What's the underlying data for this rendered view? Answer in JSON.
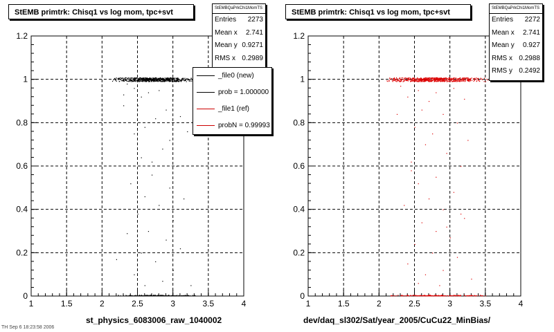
{
  "plots": [
    {
      "title": "StEMB primtrk: Chisq1 vs log mom, tpc+svt",
      "stats": {
        "name": "StEMBQaPrkChi1MomTS",
        "rows": [
          {
            "label": "Entries",
            "value": "2273"
          },
          {
            "label": "Mean x",
            "value": "2.741"
          },
          {
            "label": "Mean y",
            "value": "0.9271"
          },
          {
            "label": "RMS x",
            "value": "0.2989"
          }
        ]
      },
      "legend": [
        {
          "label": "_file0 (new)",
          "color": "#000000"
        },
        {
          "label": "prob = 1.000000",
          "color": "#000000"
        },
        {
          "label": "_file1 (ref)",
          "color": "#cc0000"
        },
        {
          "label": "probN = 0.99993",
          "color": "#cc0000"
        }
      ],
      "xlabel": "st_physics_6083006_raw_1040002",
      "marker_color": "#000000"
    },
    {
      "title": "StEMB primtrk: Chisq1 vs log mom, tpc+svt",
      "stats": {
        "name": "StEMBQaPrkChi1MomTS",
        "rows": [
          {
            "label": "Entries",
            "value": "2272"
          },
          {
            "label": "Mean x",
            "value": "2.741"
          },
          {
            "label": "Mean y",
            "value": "0.927"
          },
          {
            "label": "RMS x",
            "value": "0.2988"
          },
          {
            "label": "RMS y",
            "value": "0.2492"
          }
        ]
      },
      "legend": [],
      "xlabel": "dev/daq_sl302/Sat/year_2005/CuCu22_MinBias/",
      "marker_color": "#dd0000"
    }
  ],
  "footer": "TH Sep 6 18:23:58 2006",
  "chart_data": [
    {
      "type": "scatter",
      "title": "StEMB primtrk: Chisq1 vs log mom, tpc+svt",
      "xlabel": "st_physics_6083006_raw_1040002",
      "ylabel": "",
      "xlim": [
        1,
        4
      ],
      "ylim": [
        0,
        1.2
      ],
      "xticks": [
        "1",
        "1.5",
        "2",
        "2.5",
        "3",
        "3.5",
        "4"
      ],
      "yticks": [
        "0",
        "0.2",
        "0.4",
        "0.6",
        "0.8",
        "1",
        "1.2"
      ],
      "grid": true,
      "color": "#000000",
      "dense_bands": [
        {
          "y": 1.0,
          "x_range": [
            2.1,
            3.35
          ],
          "peak_x": 2.7
        },
        {
          "y": 0.0,
          "x_range": [
            2.2,
            3.35
          ],
          "peak_x": 2.75
        }
      ],
      "points": [
        [
          2.35,
          0.98
        ],
        [
          2.45,
          0.96
        ],
        [
          2.3,
          0.93
        ],
        [
          2.55,
          0.92
        ],
        [
          2.65,
          0.94
        ],
        [
          2.8,
          0.95
        ],
        [
          3.0,
          0.93
        ],
        [
          2.5,
          0.88
        ],
        [
          2.9,
          0.86
        ],
        [
          2.3,
          0.88
        ],
        [
          2.75,
          0.82
        ],
        [
          3.1,
          0.83
        ],
        [
          2.6,
          0.78
        ],
        [
          2.45,
          0.75
        ],
        [
          2.95,
          0.72
        ],
        [
          3.2,
          0.76
        ],
        [
          2.85,
          0.68
        ],
        [
          2.55,
          0.64
        ],
        [
          3.05,
          0.6
        ],
        [
          2.7,
          0.56
        ],
        [
          2.4,
          0.52
        ],
        [
          2.95,
          0.5
        ],
        [
          2.6,
          0.46
        ],
        [
          3.15,
          0.45
        ],
        [
          2.8,
          0.42
        ],
        [
          2.5,
          0.38
        ],
        [
          3.0,
          0.35
        ],
        [
          2.65,
          0.3
        ],
        [
          2.35,
          0.29
        ],
        [
          2.9,
          0.26
        ],
        [
          3.1,
          0.22
        ],
        [
          2.55,
          0.2
        ],
        [
          2.75,
          0.16
        ],
        [
          2.2,
          0.17
        ],
        [
          3.0,
          0.12
        ],
        [
          2.45,
          0.1
        ],
        [
          2.85,
          0.07
        ],
        [
          2.6,
          0.05
        ],
        [
          3.25,
          0.05
        ],
        [
          2.7,
          0.62
        ]
      ]
    },
    {
      "type": "scatter",
      "title": "StEMB primtrk: Chisq1 vs log mom, tpc+svt",
      "xlabel": "dev/daq_sl302/Sat/year_2005/CuCu22_MinBias/",
      "ylabel": "",
      "xlim": [
        1,
        4
      ],
      "ylim": [
        0,
        1.2
      ],
      "xticks": [
        "1",
        "1.5",
        "2",
        "2.5",
        "3",
        "3.5",
        "4"
      ],
      "yticks": [
        "0",
        "0.2",
        "0.4",
        "0.6",
        "0.8",
        "1",
        "1.2"
      ],
      "grid": true,
      "color": "#dd0000",
      "dense_bands": [
        {
          "y": 1.0,
          "x_range": [
            2.05,
            3.55
          ],
          "peak_x": 2.75
        },
        {
          "y": 0.0,
          "x_range": [
            2.1,
            3.6
          ],
          "peak_x": 2.8
        }
      ],
      "points": [
        [
          2.3,
          0.97
        ],
        [
          2.55,
          0.95
        ],
        [
          2.8,
          0.94
        ],
        [
          3.05,
          0.96
        ],
        [
          2.4,
          0.92
        ],
        [
          2.7,
          0.9
        ],
        [
          3.2,
          0.91
        ],
        [
          2.6,
          0.86
        ],
        [
          2.25,
          0.84
        ],
        [
          2.9,
          0.84
        ],
        [
          3.1,
          0.8
        ],
        [
          2.5,
          0.78
        ],
        [
          2.75,
          0.75
        ],
        [
          3.25,
          0.72
        ],
        [
          2.65,
          0.7
        ],
        [
          2.95,
          0.66
        ],
        [
          2.45,
          0.62
        ],
        [
          3.15,
          0.6
        ],
        [
          2.8,
          0.55
        ],
        [
          2.55,
          0.52
        ],
        [
          3.05,
          0.48
        ],
        [
          2.7,
          0.45
        ],
        [
          2.35,
          0.42
        ],
        [
          2.9,
          0.4
        ],
        [
          3.2,
          0.36
        ],
        [
          2.6,
          0.34
        ],
        [
          2.8,
          0.3
        ],
        [
          3.0,
          0.27
        ],
        [
          2.5,
          0.24
        ],
        [
          2.75,
          0.2
        ],
        [
          3.1,
          0.18
        ],
        [
          2.4,
          0.15
        ],
        [
          2.9,
          0.12
        ],
        [
          2.65,
          0.1
        ],
        [
          3.3,
          0.08
        ],
        [
          2.55,
          0.06
        ],
        [
          2.85,
          0.05
        ],
        [
          3.15,
          0.38
        ],
        [
          2.45,
          0.58
        ],
        [
          2.95,
          0.32
        ]
      ]
    }
  ]
}
